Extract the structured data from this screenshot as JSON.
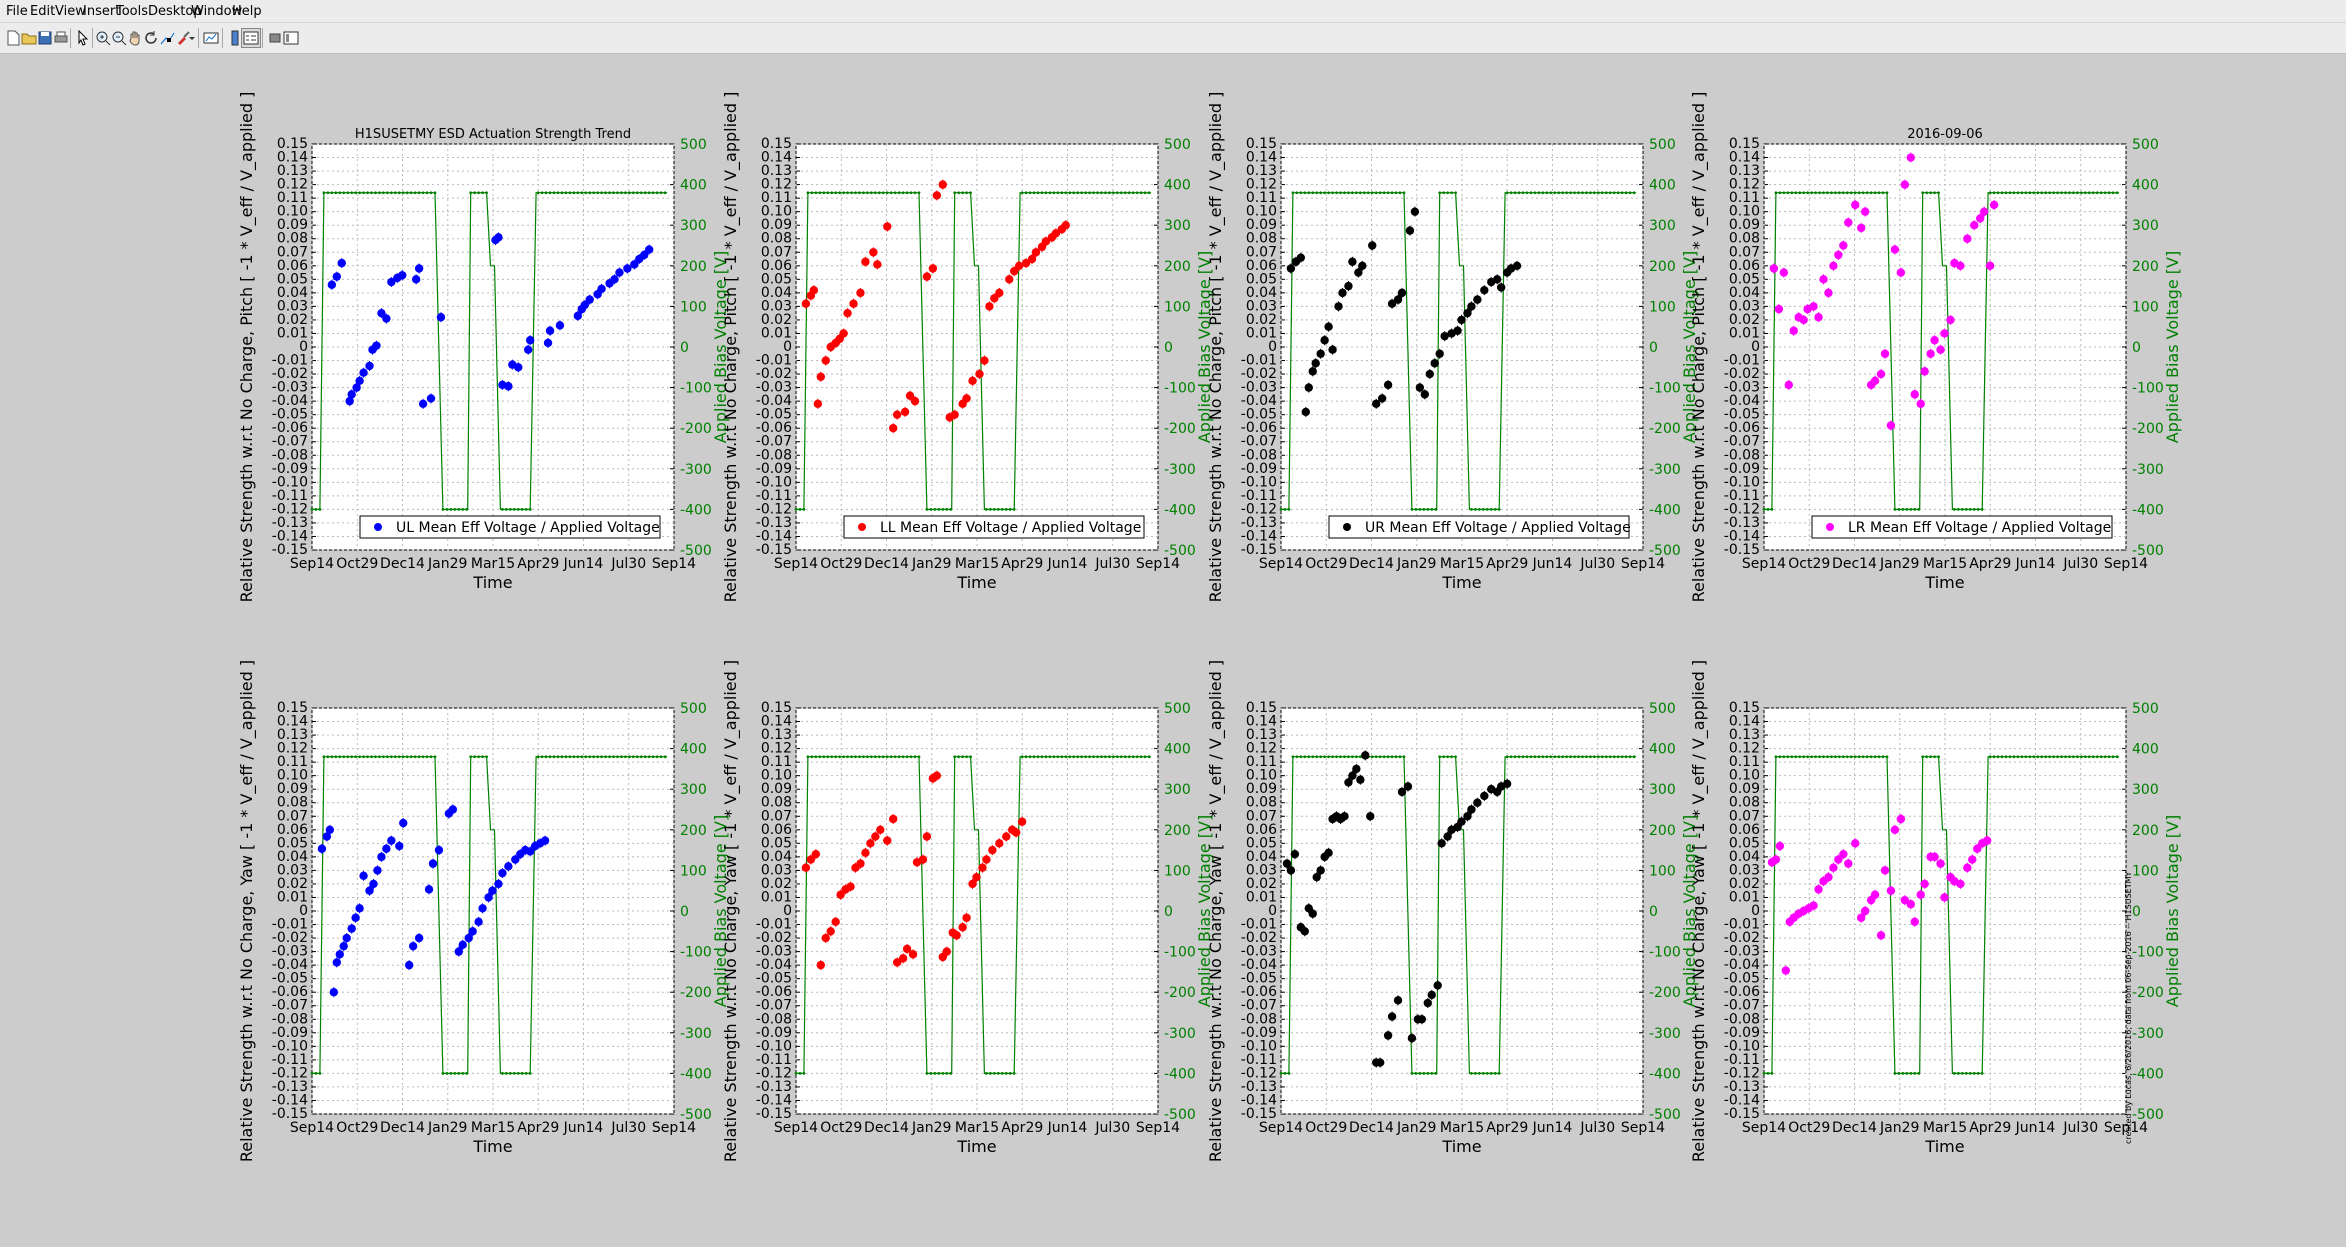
{
  "menu": [
    "File",
    "Edit",
    "View",
    "Insert",
    "Tools",
    "Desktop",
    "Window",
    "Help"
  ],
  "toolbar": [
    "new-file-icon",
    "open-folder-icon",
    "save-icon",
    "print-icon",
    "pointer-icon",
    "zoom-in-icon",
    "zoom-out-icon",
    "pan-hand-icon",
    "rotate-icon",
    "data-cursor-icon",
    "brush-icon",
    "link-plot-icon",
    "colorbar-icon",
    "legend-icon",
    "hide-plot-tools-icon",
    "show-plot-tools-icon"
  ],
  "colors": {
    "UL": "#0000ff",
    "LL": "#ff0000",
    "UR": "#000000",
    "LR": "#ff00ff",
    "bias": "#008000"
  },
  "chart_data": [
    {
      "type": "scatter",
      "panel": "UL-Pitch",
      "title": "H1SUSETMY ESD Actuation Strength Trend",
      "xlabel": "Time",
      "ylabel": "Relative Strength w.r.t No Charge, Pitch [ -1 * V_eff / V_applied ]",
      "y2label": "Applied Bias Voltage [V]",
      "ylim": [
        -0.15,
        0.15
      ],
      "y2lim": [
        -500,
        500
      ],
      "xticks": [
        "Sep14",
        "Oct29",
        "Dec14",
        "Jan29",
        "Mar15",
        "Apr29",
        "Jun14",
        "Jul30",
        "Sep14"
      ],
      "legend": "UL Mean Eff Voltage / Applied Voltage",
      "legend_loc": "bottom",
      "color": "#0000ff",
      "grid": true,
      "x": [
        20,
        25,
        30,
        38,
        40,
        45,
        48,
        52,
        58,
        61,
        65,
        70,
        75,
        80,
        86,
        91,
        105,
        108,
        112,
        120,
        130,
        185,
        188,
        192,
        198,
        202,
        208,
        218,
        220,
        238,
        240,
        250,
        268,
        272,
        275,
        280,
        288,
        292,
        300,
        305,
        310,
        318,
        325,
        330,
        335,
        340
      ],
      "y": [
        0.046,
        0.052,
        0.062,
        -0.04,
        -0.035,
        -0.03,
        -0.025,
        -0.019,
        -0.014,
        -0.002,
        0.001,
        0.025,
        0.021,
        0.048,
        0.051,
        0.053,
        0.05,
        0.058,
        -0.042,
        -0.038,
        0.022,
        0.079,
        0.081,
        -0.028,
        -0.029,
        -0.013,
        -0.015,
        -0.002,
        0.005,
        0.003,
        0.012,
        0.016,
        0.023,
        0.028,
        0.031,
        0.035,
        0.039,
        0.043,
        0.047,
        0.05,
        0.055,
        0.058,
        0.061,
        0.065,
        0.068,
        0.072
      ],
      "bias_levels": [
        -400,
        380
      ]
    },
    {
      "type": "scatter",
      "panel": "LL-Pitch",
      "title": "",
      "xlabel": "Time",
      "ylabel": "Relative Strength w.r.t No Charge, Pitch [ -1 * V_eff / V_applied ]",
      "y2label": "Applied Bias Voltage [V]",
      "ylim": [
        -0.15,
        0.15
      ],
      "y2lim": [
        -500,
        500
      ],
      "xticks": [
        "Sep14",
        "Oct29",
        "Dec14",
        "Jan29",
        "Mar15",
        "Apr29",
        "Jun14",
        "Jul30",
        "Sep14"
      ],
      "legend": "LL Mean Eff Voltage / Applied Voltage",
      "legend_loc": "bottom",
      "color": "#ff0000",
      "grid": true,
      "x": [
        10,
        15,
        18,
        22,
        25,
        30,
        35,
        40,
        44,
        48,
        52,
        58,
        65,
        70,
        78,
        82,
        92,
        98,
        102,
        110,
        115,
        120,
        132,
        138,
        142,
        148,
        155,
        160,
        168,
        172,
        178,
        185,
        190,
        195,
        200,
        205,
        215,
        220,
        225,
        232,
        238,
        242,
        248,
        252,
        258,
        262,
        268,
        272
      ],
      "y": [
        0.032,
        0.038,
        0.042,
        -0.042,
        -0.022,
        -0.01,
        0,
        0.003,
        0.006,
        0.01,
        0.025,
        0.032,
        0.04,
        0.063,
        0.07,
        0.061,
        0.089,
        -0.06,
        -0.05,
        -0.048,
        -0.036,
        -0.04,
        0.052,
        0.058,
        0.112,
        0.12,
        -0.052,
        -0.05,
        -0.042,
        -0.038,
        -0.025,
        -0.02,
        -0.01,
        0.03,
        0.036,
        0.04,
        0.05,
        0.056,
        0.06,
        0.062,
        0.065,
        0.07,
        0.074,
        0.078,
        0.081,
        0.084,
        0.087,
        0.09
      ]
    },
    {
      "type": "scatter",
      "panel": "UR-Pitch",
      "title": "",
      "xlabel": "Time",
      "ylabel": "Relative Strength w.r.t No Charge, Pitch [ -1 * V_eff / V_applied ]",
      "y2label": "Applied Bias Voltage [V]",
      "ylim": [
        -0.15,
        0.15
      ],
      "y2lim": [
        -500,
        500
      ],
      "xticks": [
        "Sep14",
        "Oct29",
        "Dec14",
        "Jan29",
        "Mar15",
        "Apr29",
        "Jun14",
        "Jul30",
        "Sep14"
      ],
      "legend": "UR Mean Eff Voltage / Applied Voltage",
      "legend_loc": "bottom",
      "color": "#000000",
      "grid": true,
      "x": [
        10,
        15,
        20,
        25,
        28,
        32,
        35,
        40,
        44,
        48,
        52,
        58,
        62,
        68,
        72,
        78,
        82,
        92,
        96,
        102,
        108,
        112,
        118,
        122,
        130,
        135,
        140,
        145,
        150,
        155,
        160,
        165,
        172,
        178,
        182,
        188,
        192,
        198,
        205,
        212,
        218,
        222,
        228,
        232,
        238
      ],
      "y": [
        0.058,
        0.063,
        0.066,
        -0.048,
        -0.03,
        -0.018,
        -0.012,
        -0.005,
        0.005,
        0.015,
        -0.002,
        0.03,
        0.04,
        0.045,
        0.063,
        0.055,
        0.06,
        0.075,
        -0.042,
        -0.038,
        -0.028,
        0.032,
        0.035,
        0.04,
        0.086,
        0.1,
        -0.03,
        -0.035,
        -0.02,
        -0.012,
        -0.005,
        0.008,
        0.01,
        0.012,
        0.02,
        0.025,
        0.03,
        0.035,
        0.042,
        0.048,
        0.05,
        0.044,
        0.055,
        0.058,
        0.06
      ]
    },
    {
      "type": "scatter",
      "panel": "LR-Pitch",
      "title": "2016-09-06",
      "xlabel": "Time",
      "ylabel": "Relative Strength w.r.t No Charge, Pitch [ -1 * V_eff / V_applied ]",
      "y2label": "Applied Bias Voltage [V]",
      "ylim": [
        -0.15,
        0.15
      ],
      "y2lim": [
        -500,
        500
      ],
      "xticks": [
        "Sep14",
        "Oct29",
        "Dec14",
        "Jan29",
        "Mar15",
        "Apr29",
        "Jun14",
        "Jul30",
        "Sep14"
      ],
      "legend": "LR Mean Eff Voltage / Applied Voltage",
      "legend_loc": "bottom",
      "color": "#ff00ff",
      "grid": true,
      "x": [
        10,
        15,
        20,
        25,
        30,
        35,
        40,
        44,
        50,
        55,
        60,
        65,
        70,
        75,
        80,
        85,
        92,
        98,
        102,
        108,
        112,
        118,
        122,
        128,
        132,
        138,
        142,
        148,
        152,
        158,
        162,
        168,
        172,
        178,
        182,
        188,
        192,
        198,
        205,
        212,
        218,
        222,
        228,
        232
      ],
      "y": [
        0.058,
        0.028,
        0.055,
        -0.028,
        0.012,
        0.022,
        0.02,
        0.028,
        0.03,
        0.022,
        0.05,
        0.04,
        0.06,
        0.068,
        0.075,
        0.092,
        0.105,
        0.088,
        0.1,
        -0.028,
        -0.025,
        -0.02,
        -0.005,
        -0.058,
        0.072,
        0.055,
        0.12,
        0.14,
        -0.035,
        -0.042,
        -0.018,
        -0.005,
        0.005,
        -0.002,
        0.01,
        0.02,
        0.062,
        0.06,
        0.08,
        0.09,
        0.095,
        0.1,
        0.06,
        0.105
      ]
    },
    {
      "type": "scatter",
      "panel": "UL-Yaw",
      "title": "",
      "xlabel": "Time",
      "ylabel": "Relative Strength w.r.t No Charge, Yaw [ -1 * V_eff / V_applied ]",
      "y2label": "Applied Bias Voltage [V]",
      "ylim": [
        -0.15,
        0.15
      ],
      "y2lim": [
        -500,
        500
      ],
      "xticks": [
        "Sep14",
        "Oct29",
        "Dec14",
        "Jan29",
        "Mar15",
        "Apr29",
        "Jun14",
        "Jul30",
        "Sep14"
      ],
      "legend": "",
      "color": "#0000ff",
      "grid": true,
      "x": [
        10,
        15,
        18,
        22,
        25,
        28,
        32,
        35,
        40,
        44,
        48,
        52,
        58,
        62,
        66,
        70,
        75,
        80,
        88,
        92,
        98,
        102,
        108,
        118,
        122,
        128,
        138,
        142,
        148,
        152,
        158,
        162,
        168,
        172,
        178,
        182,
        188,
        192,
        198,
        205,
        210,
        215,
        220,
        225,
        230,
        235
      ],
      "y": [
        0.046,
        0.055,
        0.06,
        -0.06,
        -0.038,
        -0.032,
        -0.026,
        -0.02,
        -0.013,
        -0.005,
        0.002,
        0.026,
        0.015,
        0.02,
        0.03,
        0.04,
        0.046,
        0.052,
        0.048,
        0.065,
        -0.04,
        -0.026,
        -0.02,
        0.016,
        0.035,
        0.045,
        0.072,
        0.075,
        -0.03,
        -0.025,
        -0.02,
        -0.015,
        -0.008,
        0.002,
        0.01,
        0.015,
        0.02,
        0.028,
        0.033,
        0.038,
        0.042,
        0.045,
        0.044,
        0.048,
        0.05,
        0.052
      ]
    },
    {
      "type": "scatter",
      "panel": "LL-Yaw",
      "title": "",
      "xlabel": "Time",
      "ylabel": "Relative Strength w.r.t No Charge, Yaw [ -1 * V_eff / V_applied ]",
      "y2label": "Applied Bias Voltage [V]",
      "ylim": [
        -0.15,
        0.15
      ],
      "y2lim": [
        -500,
        500
      ],
      "xticks": [
        "Sep14",
        "Oct29",
        "Dec14",
        "Jan29",
        "Mar15",
        "Apr29",
        "Jun14",
        "Jul30",
        "Sep14"
      ],
      "legend": "",
      "color": "#ff0000",
      "grid": true,
      "x": [
        10,
        15,
        20,
        25,
        30,
        35,
        40,
        45,
        50,
        55,
        60,
        65,
        70,
        75,
        80,
        85,
        92,
        98,
        102,
        108,
        112,
        118,
        122,
        128,
        132,
        138,
        142,
        148,
        152,
        158,
        162,
        168,
        172,
        178,
        182,
        188,
        192,
        198,
        205,
        212,
        218,
        222,
        228
      ],
      "y": [
        0.032,
        0.038,
        0.042,
        -0.04,
        -0.02,
        -0.015,
        -0.008,
        0.012,
        0.016,
        0.018,
        0.032,
        0.035,
        0.043,
        0.05,
        0.055,
        0.06,
        0.052,
        0.068,
        -0.038,
        -0.035,
        -0.028,
        -0.032,
        0.036,
        0.038,
        0.055,
        0.098,
        0.1,
        -0.034,
        -0.03,
        -0.016,
        -0.018,
        -0.012,
        -0.005,
        0.02,
        0.025,
        0.032,
        0.038,
        0.045,
        0.05,
        0.055,
        0.06,
        0.058,
        0.066
      ]
    },
    {
      "type": "scatter",
      "panel": "UR-Yaw",
      "title": "",
      "xlabel": "Time",
      "ylabel": "Relative Strength w.r.t No Charge, Yaw [ -1 * V_eff / V_applied ]",
      "y2label": "Applied Bias Voltage [V]",
      "ylim": [
        -0.15,
        0.15
      ],
      "y2lim": [
        -500,
        500
      ],
      "xticks": [
        "Sep14",
        "Oct29",
        "Dec14",
        "Jan29",
        "Mar15",
        "Apr29",
        "Jun14",
        "Jul30",
        "Sep14"
      ],
      "legend": "",
      "color": "#000000",
      "grid": true,
      "x": [
        6,
        10,
        14,
        20,
        24,
        28,
        32,
        36,
        40,
        44,
        48,
        52,
        56,
        60,
        64,
        68,
        72,
        76,
        80,
        85,
        90,
        96,
        100,
        108,
        112,
        118,
        122,
        128,
        132,
        138,
        142,
        148,
        152,
        158,
        162,
        168,
        172,
        178,
        182,
        188,
        192,
        198,
        205,
        212,
        218,
        222,
        228
      ],
      "y": [
        0.035,
        0.03,
        0.042,
        -0.012,
        -0.015,
        0.002,
        -0.002,
        0.025,
        0.03,
        0.04,
        0.043,
        0.068,
        0.07,
        0.068,
        0.07,
        0.095,
        0.1,
        0.105,
        0.097,
        0.115,
        0.07,
        -0.112,
        -0.112,
        -0.092,
        -0.078,
        -0.066,
        0.088,
        0.092,
        -0.094,
        -0.08,
        -0.08,
        -0.068,
        -0.062,
        -0.055,
        0.05,
        0.055,
        0.06,
        0.062,
        0.066,
        0.07,
        0.075,
        0.08,
        0.085,
        0.09,
        0.088,
        0.092,
        0.094
      ]
    },
    {
      "type": "scatter",
      "panel": "LR-Yaw",
      "title": "",
      "xlabel": "Time",
      "ylabel": "Relative Strength w.r.t No Charge, Yaw [ -1 * V_eff / V_applied ]",
      "y2label": "Applied Bias Voltage [V]",
      "ylim": [
        -0.15,
        0.15
      ],
      "y2lim": [
        -500,
        500
      ],
      "xticks": [
        "Sep14",
        "Oct29",
        "Dec14",
        "Jan29",
        "Mar15",
        "Apr29",
        "Jun14",
        "Jul30",
        "Sep14"
      ],
      "legend": "",
      "color": "#ff00ff",
      "grid": true,
      "x": [
        8,
        12,
        16,
        22,
        26,
        30,
        35,
        40,
        45,
        50,
        55,
        60,
        65,
        70,
        75,
        80,
        85,
        92,
        98,
        102,
        108,
        112,
        118,
        122,
        128,
        132,
        138,
        142,
        148,
        152,
        158,
        162,
        168,
        172,
        178,
        182,
        188,
        192,
        198,
        205,
        210,
        215,
        220,
        225
      ],
      "y": [
        0.036,
        0.038,
        0.048,
        -0.044,
        -0.008,
        -0.005,
        -0.002,
        0,
        0.002,
        0.004,
        0.016,
        0.022,
        0.025,
        0.032,
        0.038,
        0.042,
        0.035,
        0.05,
        -0.005,
        0,
        0.008,
        0.012,
        -0.018,
        0.03,
        0.015,
        0.06,
        0.068,
        0.008,
        0.005,
        -0.008,
        0.012,
        0.02,
        0.04,
        0.04,
        0.035,
        0.01,
        0.025,
        0.022,
        0.02,
        0.032,
        0.038,
        0.046,
        0.05,
        0.052
      ]
    }
  ],
  "sidenote": "created by Lucas, 6/26/2016; data from 06-Sep-2016 -- H1SUSETMY"
}
